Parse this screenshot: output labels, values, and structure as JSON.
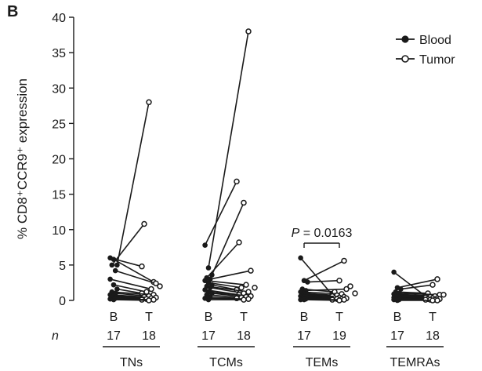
{
  "panel_label": "B",
  "chart_data": {
    "type": "scatter",
    "ylabel": "% CD8⁺CCR9⁺ expression",
    "xlabel": "",
    "ylim": [
      0,
      40
    ],
    "yticks": [
      0,
      5,
      10,
      15,
      20,
      25,
      30,
      35,
      40
    ],
    "grid": false,
    "legend_position": "top-right",
    "legend": [
      {
        "label": "Blood",
        "marker": "filled-circle"
      },
      {
        "label": "Tumor",
        "marker": "open-circle"
      }
    ],
    "n_label": "n",
    "groups": [
      {
        "name": "TNs",
        "blood_label": "B",
        "tumor_label": "T",
        "blood_n": "17",
        "tumor_n": "18",
        "pairs": [
          [
            6.0,
            4.8
          ],
          [
            5.8,
            2.6
          ],
          [
            5.0,
            28.0
          ],
          [
            5.0,
            10.8
          ],
          [
            4.2,
            2.4
          ],
          [
            3.0,
            1.6
          ],
          [
            2.2,
            1.2
          ],
          [
            1.6,
            1.0
          ],
          [
            1.2,
            0.8
          ],
          [
            1.0,
            0.6
          ],
          [
            0.8,
            0.5
          ],
          [
            0.6,
            0.4
          ],
          [
            0.5,
            0.3
          ],
          [
            0.4,
            0.2
          ],
          [
            0.3,
            0.1
          ],
          [
            0.2,
            0.1
          ],
          [
            0.1,
            0.0
          ]
        ],
        "tumor_only": [
          2.0
        ]
      },
      {
        "name": "TCMs",
        "blood_label": "B",
        "tumor_label": "T",
        "blood_n": "17",
        "tumor_n": "18",
        "pairs": [
          [
            7.8,
            16.8
          ],
          [
            4.6,
            38.0
          ],
          [
            3.6,
            13.8
          ],
          [
            3.2,
            8.2
          ],
          [
            3.0,
            4.2
          ],
          [
            2.8,
            2.2
          ],
          [
            2.5,
            1.8
          ],
          [
            2.2,
            1.5
          ],
          [
            2.0,
            1.2
          ],
          [
            1.8,
            1.0
          ],
          [
            1.5,
            0.8
          ],
          [
            1.2,
            0.6
          ],
          [
            1.0,
            0.5
          ],
          [
            0.8,
            0.4
          ],
          [
            0.5,
            0.3
          ],
          [
            0.3,
            0.2
          ],
          [
            0.1,
            0.1
          ]
        ],
        "tumor_only": [
          1.8
        ]
      },
      {
        "name": "TEMs",
        "blood_label": "B",
        "tumor_label": "T",
        "blood_n": "17",
        "tumor_n": "19",
        "pairs": [
          [
            6.0,
            0.8
          ],
          [
            2.8,
            5.6
          ],
          [
            2.6,
            2.8
          ],
          [
            1.6,
            1.2
          ],
          [
            1.4,
            1.6
          ],
          [
            1.2,
            0.9
          ],
          [
            1.0,
            0.7
          ],
          [
            0.9,
            0.6
          ],
          [
            0.8,
            0.5
          ],
          [
            0.7,
            0.4
          ],
          [
            0.6,
            0.3
          ],
          [
            0.5,
            0.3
          ],
          [
            0.4,
            0.2
          ],
          [
            0.3,
            0.2
          ],
          [
            0.2,
            0.1
          ],
          [
            0.1,
            0.1
          ],
          [
            0.1,
            0.0
          ]
        ],
        "tumor_only": [
          2.0,
          1.0
        ],
        "annotation": {
          "p_symbol": "P",
          "p_text": " = 0.0163"
        }
      },
      {
        "name": "TEMRAs",
        "blood_label": "B",
        "tumor_label": "T",
        "blood_n": "17",
        "tumor_n": "18",
        "pairs": [
          [
            4.0,
            0.6
          ],
          [
            1.8,
            3.0
          ],
          [
            1.6,
            2.2
          ],
          [
            1.2,
            1.0
          ],
          [
            1.0,
            0.8
          ],
          [
            0.9,
            0.6
          ],
          [
            0.8,
            0.5
          ],
          [
            0.7,
            0.4
          ],
          [
            0.6,
            0.3
          ],
          [
            0.5,
            0.3
          ],
          [
            0.4,
            0.2
          ],
          [
            0.3,
            0.2
          ],
          [
            0.3,
            0.1
          ],
          [
            0.2,
            0.1
          ],
          [
            0.1,
            0.1
          ],
          [
            0.1,
            0.0
          ],
          [
            0.0,
            0.0
          ]
        ],
        "tumor_only": [
          0.8
        ]
      }
    ]
  }
}
